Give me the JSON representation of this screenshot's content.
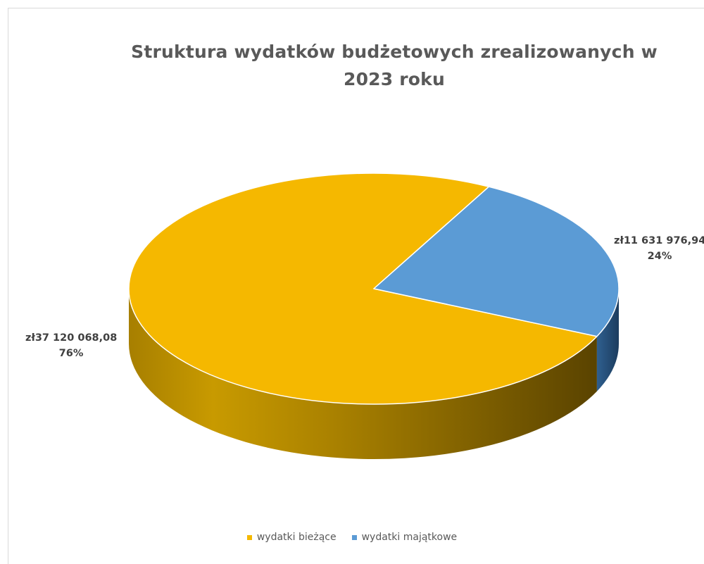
{
  "chart_data": {
    "type": "pie",
    "title": "Struktura wydatków budżetowych zrealizowanych w 2023 roku",
    "slices": [
      {
        "name": "wydatki bieżące",
        "value": 37120068.08,
        "value_label": "zł37 120 068,08",
        "percent": 76,
        "percent_label": "76%",
        "color": "#f5b800"
      },
      {
        "name": "wydatki majątkowe",
        "value": 11631976.94,
        "value_label": "zł11 631 976,94",
        "percent": 24,
        "percent_label": "24%",
        "color": "#5b9bd5"
      }
    ],
    "legend_position": "bottom",
    "style": "3d"
  }
}
